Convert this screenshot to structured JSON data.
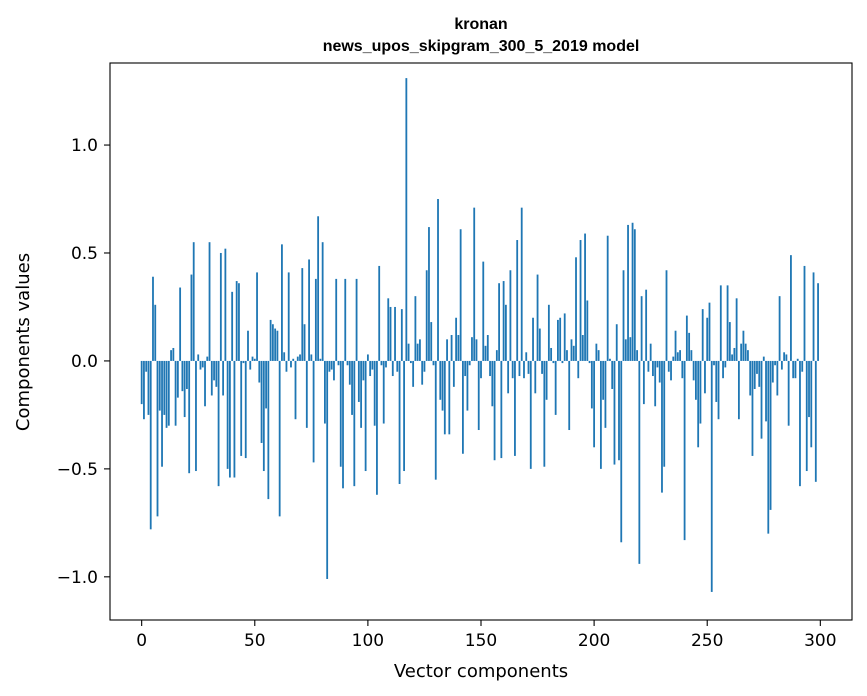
{
  "chart_data": {
    "type": "bar",
    "title": "kronan\nnews_upos_skipgram_300_5_2019 model",
    "title_lines": [
      "kronan",
      "news_upos_skipgram_300_5_2019 model"
    ],
    "xlabel": "Vector components",
    "ylabel": "Components values",
    "xlim": [
      -14,
      314
    ],
    "ylim": [
      -1.2,
      1.38
    ],
    "xticks": [
      0,
      50,
      100,
      150,
      200,
      250,
      300
    ],
    "xtick_labels": [
      "0",
      "50",
      "100",
      "150",
      "200",
      "250",
      "300"
    ],
    "yticks": [
      -1.0,
      -0.5,
      0.0,
      0.5,
      1.0
    ],
    "ytick_labels": [
      "−1.0",
      "−0.5",
      "0.0",
      "0.5",
      "1.0"
    ],
    "bar_color": "#1f77b4",
    "grid": false,
    "legend": "none",
    "x": "integer indices 0..299 (one bar per vector component)",
    "values": [
      -0.2,
      -0.27,
      -0.05,
      -0.25,
      -0.78,
      0.39,
      0.26,
      -0.72,
      -0.23,
      -0.49,
      -0.25,
      -0.31,
      -0.3,
      0.05,
      0.06,
      -0.3,
      -0.17,
      0.34,
      -0.14,
      -0.26,
      -0.13,
      -0.52,
      0.4,
      0.55,
      -0.51,
      0.03,
      -0.04,
      -0.03,
      -0.21,
      0.02,
      0.55,
      -0.16,
      -0.09,
      -0.12,
      -0.58,
      0.5,
      -0.16,
      0.52,
      -0.5,
      -0.54,
      0.32,
      -0.54,
      0.37,
      0.36,
      -0.44,
      -0.01,
      -0.45,
      0.14,
      -0.04,
      0.02,
      0.01,
      0.41,
      -0.1,
      -0.38,
      -0.51,
      -0.22,
      -0.64,
      0.19,
      0.17,
      0.15,
      0.14,
      -0.72,
      0.54,
      0.04,
      -0.05,
      0.41,
      -0.03,
      0.01,
      -0.27,
      0.02,
      0.03,
      0.43,
      0.17,
      -0.31,
      0.47,
      0.03,
      -0.47,
      0.38,
      0.67,
      0.01,
      0.55,
      -0.29,
      -1.01,
      -0.05,
      -0.04,
      -0.09,
      0.38,
      -0.02,
      -0.49,
      -0.59,
      0.38,
      -0.02,
      -0.11,
      -0.25,
      -0.58,
      0.38,
      -0.19,
      -0.31,
      -0.09,
      -0.51,
      0.03,
      -0.07,
      -0.04,
      -0.3,
      -0.62,
      0.44,
      -0.02,
      -0.29,
      -0.03,
      0.29,
      0.25,
      -0.07,
      0.25,
      -0.05,
      -0.57,
      0.24,
      -0.51,
      1.31,
      0.08,
      -0.01,
      -0.12,
      0.3,
      0.08,
      0.1,
      -0.11,
      -0.05,
      0.42,
      0.62,
      0.18,
      -0.02,
      -0.55,
      0.75,
      -0.18,
      -0.23,
      -0.34,
      0.1,
      -0.34,
      0.12,
      -0.12,
      0.2,
      0.12,
      0.61,
      -0.43,
      -0.07,
      -0.23,
      -0.02,
      0.11,
      0.71,
      0.1,
      -0.32,
      -0.08,
      0.46,
      0.07,
      0.12,
      -0.07,
      -0.21,
      -0.46,
      0.05,
      0.36,
      -0.45,
      0.37,
      0.26,
      -0.15,
      0.42,
      -0.08,
      -0.44,
      0.56,
      -0.07,
      0.71,
      -0.08,
      0.04,
      -0.06,
      -0.5,
      0.2,
      -0.15,
      0.4,
      0.15,
      -0.06,
      -0.49,
      -0.18,
      0.26,
      0.06,
      -0.01,
      -0.25,
      0.19,
      0.2,
      -0.01,
      0.22,
      0.05,
      -0.32,
      0.1,
      0.07,
      0.48,
      -0.08,
      0.56,
      0.12,
      0.59,
      0.28,
      -0.01,
      -0.22,
      -0.4,
      0.08,
      0.05,
      -0.5,
      -0.18,
      -0.31,
      0.58,
      0.01,
      -0.13,
      -0.48,
      0.17,
      -0.46,
      -0.84,
      0.42,
      0.1,
      0.63,
      0.11,
      0.64,
      0.61,
      0.05,
      -0.94,
      0.3,
      -0.2,
      0.33,
      -0.05,
      0.08,
      -0.07,
      -0.21,
      -0.03,
      -0.1,
      -0.61,
      -0.49,
      0.42,
      -0.05,
      -0.09,
      0.02,
      0.14,
      0.04,
      0.05,
      -0.08,
      -0.83,
      0.21,
      0.13,
      0.05,
      -0.09,
      -0.18,
      -0.4,
      -0.29,
      0.24,
      -0.15,
      0.2,
      0.27,
      -1.07,
      -0.02,
      -0.19,
      -0.27,
      0.35,
      -0.08,
      -0.03,
      0.35,
      0.18,
      0.03,
      0.06,
      0.29,
      -0.27,
      0.08,
      0.14,
      0.08,
      0.05,
      -0.16,
      -0.44,
      -0.13,
      -0.06,
      -0.12,
      -0.36,
      0.02,
      -0.28,
      -0.8,
      -0.69,
      -0.1,
      -0.02,
      -0.16,
      0.3,
      -0.04,
      0.04,
      0.03,
      -0.3,
      0.49,
      -0.08,
      -0.08,
      0.01,
      -0.58,
      -0.05,
      0.44,
      -0.51,
      -0.26,
      -0.4,
      0.41,
      -0.56,
      0.36
    ]
  }
}
